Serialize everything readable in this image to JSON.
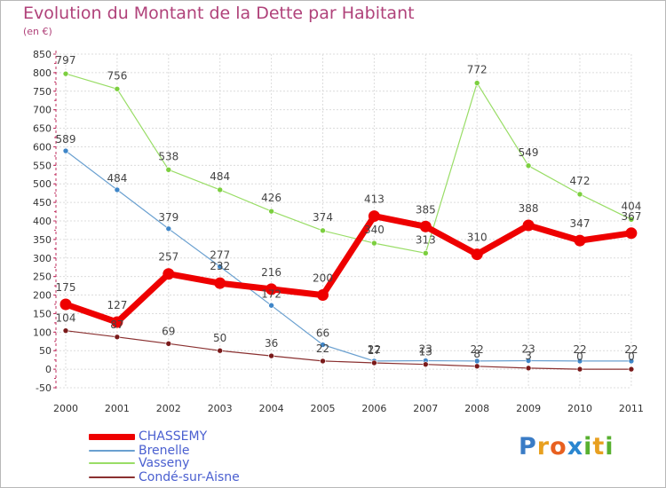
{
  "title": "Evolution du Montant de la Dette par Habitant",
  "subtitle": "(en €)",
  "logo": {
    "letters": [
      "P",
      "r",
      "o",
      "x",
      "i",
      "t",
      "i"
    ],
    "colors": [
      "#3a7cc6",
      "#e8a020",
      "#e86020",
      "#2a86d0",
      "#58b030",
      "#e8a020",
      "#58b030"
    ]
  },
  "chart_data": {
    "type": "line",
    "title": "Evolution du Montant de la Dette par Habitant",
    "subtitle": "(en €)",
    "x": [
      "2000",
      "2001",
      "2002",
      "2003",
      "2004",
      "2005",
      "2006",
      "2007",
      "2008",
      "2009",
      "2010",
      "2011"
    ],
    "ylim": [
      -50,
      850
    ],
    "yticks": [
      -50,
      0,
      50,
      100,
      150,
      200,
      250,
      300,
      350,
      400,
      450,
      500,
      550,
      600,
      650,
      700,
      750,
      800,
      850
    ],
    "grid": true,
    "legend_position": "bottom-left",
    "series": [
      {
        "name": "Vasseny",
        "color": "#99dd66",
        "marker_color": "#7ccf3f",
        "width": 1.2,
        "values": [
          797,
          756,
          538,
          484,
          426,
          374,
          340,
          313,
          772,
          549,
          472,
          404
        ],
        "labels": [
          "797",
          "756",
          "538",
          "484",
          "426",
          "374",
          "340",
          "313",
          "772",
          "549",
          "472",
          "404"
        ]
      },
      {
        "name": "Brenelle",
        "color": "#6aa0d0",
        "marker_color": "#3f86c8",
        "width": 1.2,
        "values": [
          589,
          484,
          379,
          277,
          172,
          66,
          22,
          23,
          22,
          23,
          22,
          22
        ],
        "labels": [
          "589",
          "484",
          "379",
          "277",
          "172",
          "66",
          "22",
          "23",
          "22",
          "23",
          "22",
          "22"
        ]
      },
      {
        "name": "Condé-sur-Aisne",
        "color": "#8a3030",
        "marker_color": "#7a1a1a",
        "width": 1.2,
        "values": [
          104,
          87,
          69,
          50,
          36,
          22,
          17,
          13,
          8,
          3,
          0,
          0
        ],
        "labels": [
          "104",
          "87",
          "69",
          "50",
          "36",
          "22",
          "17",
          "13",
          "8",
          "3",
          "0",
          "0"
        ]
      },
      {
        "name": "CHASSEMY",
        "color": "#ee0000",
        "marker_color": "#ee0000",
        "width": 7,
        "values": [
          175,
          127,
          257,
          232,
          216,
          200,
          413,
          385,
          310,
          388,
          347,
          367
        ],
        "labels": [
          "175",
          "127",
          "257",
          "232",
          "216",
          "200",
          "413",
          "385",
          "310",
          "388",
          "347",
          "367"
        ]
      }
    ]
  },
  "legend": [
    {
      "label": "CHASSEMY",
      "color": "#ee0000",
      "thickness": 7
    },
    {
      "label": "Brenelle",
      "color": "#6aa0d0",
      "thickness": 2
    },
    {
      "label": "Vasseny",
      "color": "#99dd66",
      "thickness": 2
    },
    {
      "label": "Condé-sur-Aisne",
      "color": "#8a3030",
      "thickness": 2
    }
  ]
}
